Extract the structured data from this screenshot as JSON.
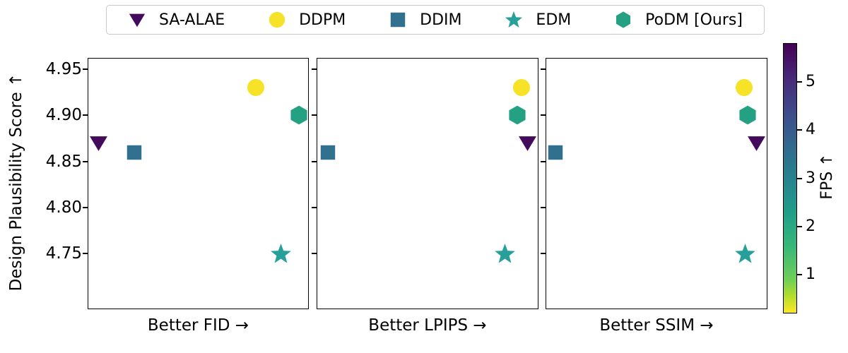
{
  "legend": {
    "series": [
      {
        "name": "SA-ALAE",
        "marker": "triangle-down",
        "color": "#440a5c"
      },
      {
        "name": "DDPM",
        "marker": "circle",
        "color": "#f6e226"
      },
      {
        "name": "DDIM",
        "marker": "square",
        "color": "#31708e"
      },
      {
        "name": "EDM",
        "marker": "star",
        "color": "#27a099"
      },
      {
        "name": "PoDM [Ours]",
        "marker": "hexagon",
        "color": "#24a183"
      }
    ]
  },
  "chart_data": {
    "type": "scatter",
    "ylabel": "Design Plausibility Score ↑",
    "ylim": [
      4.69,
      4.962
    ],
    "yticks": [
      4.75,
      4.8,
      4.85,
      4.9,
      4.95
    ],
    "grid": false,
    "legend_position": "top",
    "panels": [
      {
        "xlabel": "Better FID →",
        "x_axis": "normalized 0-1, no ticks, higher is better",
        "points": [
          {
            "series": "SA-ALAE",
            "x": 0.05,
            "y": 4.87
          },
          {
            "series": "DDIM",
            "x": 0.21,
            "y": 4.86
          },
          {
            "series": "DDPM",
            "x": 0.76,
            "y": 4.93
          },
          {
            "series": "EDM",
            "x": 0.875,
            "y": 4.75
          },
          {
            "series": "PoDM [Ours]",
            "x": 0.955,
            "y": 4.9
          }
        ]
      },
      {
        "xlabel": "Better LPIPS →",
        "x_axis": "normalized 0-1, no ticks, higher is better",
        "points": [
          {
            "series": "DDIM",
            "x": 0.05,
            "y": 4.86
          },
          {
            "series": "EDM",
            "x": 0.85,
            "y": 4.75
          },
          {
            "series": "PoDM [Ours]",
            "x": 0.905,
            "y": 4.9
          },
          {
            "series": "DDPM",
            "x": 0.925,
            "y": 4.93
          },
          {
            "series": "SA-ALAE",
            "x": 0.95,
            "y": 4.87
          }
        ]
      },
      {
        "xlabel": "Better SSIM →",
        "x_axis": "normalized 0-1, no ticks, higher is better",
        "points": [
          {
            "series": "DDIM",
            "x": 0.045,
            "y": 4.86
          },
          {
            "series": "DDPM",
            "x": 0.895,
            "y": 4.93
          },
          {
            "series": "EDM",
            "x": 0.9,
            "y": 4.75
          },
          {
            "series": "PoDM [Ours]",
            "x": 0.91,
            "y": 4.9
          },
          {
            "series": "SA-ALAE",
            "x": 0.95,
            "y": 4.87
          }
        ]
      }
    ],
    "colorbar": {
      "label": "FPS ↑",
      "ticks": [
        5,
        4,
        3,
        2,
        1
      ],
      "range_estimate": [
        0.2,
        5.8
      ],
      "colormap": "viridis (high FPS = dark purple at top, low FPS = yellow at bottom)",
      "top_color": "#440154",
      "bottom_color": "#fde725"
    }
  }
}
